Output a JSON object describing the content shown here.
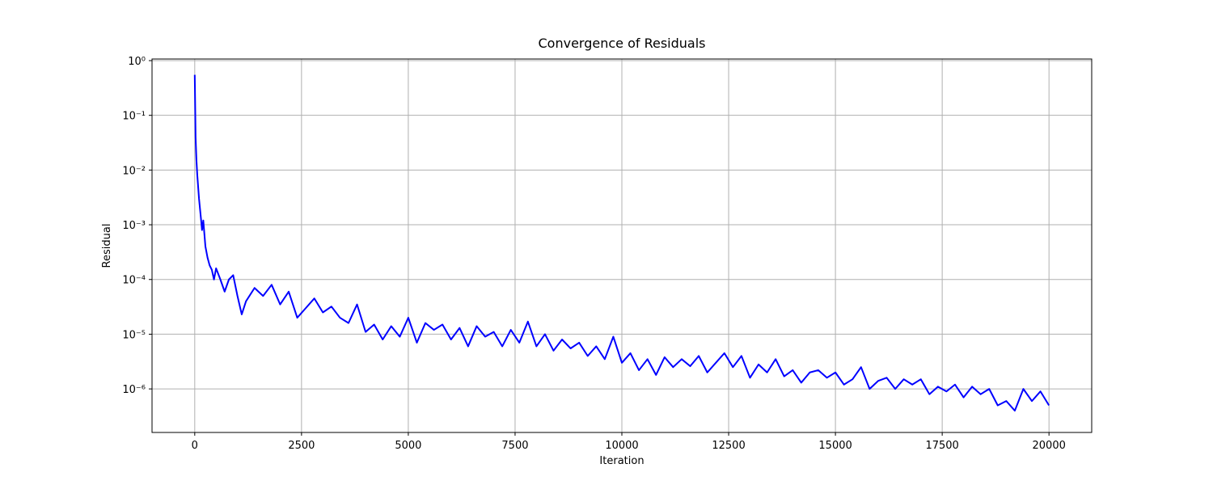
{
  "chart_data": {
    "type": "line",
    "title": "Convergence of Residuals",
    "x_label": "Iteration",
    "y_label": "Residual",
    "log_y": true,
    "grid": true,
    "xlim": [
      -1000,
      21000
    ],
    "xticks": [
      0,
      2500,
      5000,
      7500,
      10000,
      12500,
      15000,
      17500,
      20000
    ],
    "ylim": [
      1.6e-07,
      1.07
    ],
    "yticks": [
      {
        "value": 1e-06,
        "label": "10⁻⁶"
      },
      {
        "value": 1e-05,
        "label": "10⁻⁵"
      },
      {
        "value": 0.0001,
        "label": "10⁻⁴"
      },
      {
        "value": 0.001,
        "label": "10⁻³"
      },
      {
        "value": 0.01,
        "label": "10⁻²"
      },
      {
        "value": 0.1,
        "label": "10⁻¹"
      },
      {
        "value": 1,
        "label": "10⁰"
      }
    ],
    "x": [
      0,
      20,
      40,
      60,
      100,
      150,
      170,
      200,
      250,
      300,
      350,
      400,
      450,
      500,
      600,
      700,
      800,
      900,
      1000,
      1100,
      1200,
      1400,
      1600,
      1800,
      2000,
      2200,
      2400,
      2600,
      2800,
      3000,
      3200,
      3400,
      3600,
      3800,
      4000,
      4200,
      4400,
      4600,
      4800,
      5000,
      5200,
      5400,
      5600,
      5800,
      6000,
      6200,
      6400,
      6600,
      6800,
      7000,
      7200,
      7400,
      7600,
      7800,
      8000,
      8200,
      8400,
      8600,
      8800,
      9000,
      9200,
      9400,
      9600,
      9800,
      10000,
      10200,
      10400,
      10600,
      10800,
      11000,
      11200,
      11400,
      11600,
      11800,
      12000,
      12200,
      12400,
      12600,
      12800,
      13000,
      13200,
      13400,
      13600,
      13800,
      14000,
      14200,
      14400,
      14600,
      14800,
      15000,
      15200,
      15400,
      15600,
      15800,
      16000,
      16200,
      16400,
      16600,
      16800,
      17000,
      17200,
      17400,
      17600,
      17800,
      18000,
      18200,
      18400,
      18600,
      18800,
      19000,
      19200,
      19400,
      19600,
      19800,
      20000
    ],
    "series": [
      {
        "name": "Residual",
        "color": "#0000ff",
        "values": [
          0.55,
          0.04,
          0.015,
          0.008,
          0.003,
          0.0012,
          0.0008,
          0.0012,
          0.0004,
          0.00025,
          0.00018,
          0.00015,
          0.0001,
          0.00016,
          0.0001,
          6e-05,
          0.0001,
          0.00012,
          5e-05,
          2.3e-05,
          4e-05,
          7e-05,
          5e-05,
          8e-05,
          3.5e-05,
          6e-05,
          2e-05,
          3e-05,
          4.5e-05,
          2.5e-05,
          3.2e-05,
          2e-05,
          1.6e-05,
          3.5e-05,
          1.1e-05,
          1.5e-05,
          8e-06,
          1.4e-05,
          9e-06,
          2e-05,
          7e-06,
          1.6e-05,
          1.2e-05,
          1.5e-05,
          8e-06,
          1.3e-05,
          6e-06,
          1.4e-05,
          9e-06,
          1.1e-05,
          6e-06,
          1.2e-05,
          7e-06,
          1.7e-05,
          6e-06,
          1e-05,
          5e-06,
          8e-06,
          5.5e-06,
          7e-06,
          4e-06,
          6e-06,
          3.5e-06,
          9e-06,
          3e-06,
          4.5e-06,
          2.2e-06,
          3.5e-06,
          1.8e-06,
          3.8e-06,
          2.5e-06,
          3.5e-06,
          2.6e-06,
          4e-06,
          2e-06,
          3e-06,
          4.5e-06,
          2.5e-06,
          4e-06,
          1.6e-06,
          2.8e-06,
          2e-06,
          3.5e-06,
          1.7e-06,
          2.2e-06,
          1.3e-06,
          2e-06,
          2.2e-06,
          1.6e-06,
          2e-06,
          1.2e-06,
          1.5e-06,
          2.5e-06,
          1e-06,
          1.4e-06,
          1.6e-06,
          1e-06,
          1.5e-06,
          1.2e-06,
          1.5e-06,
          8e-07,
          1.1e-06,
          9e-07,
          1.2e-06,
          7e-07,
          1.1e-06,
          8e-07,
          1e-06,
          5e-07,
          6e-07,
          4e-07,
          1e-06,
          6e-07,
          9e-07,
          5e-07
        ]
      }
    ]
  }
}
